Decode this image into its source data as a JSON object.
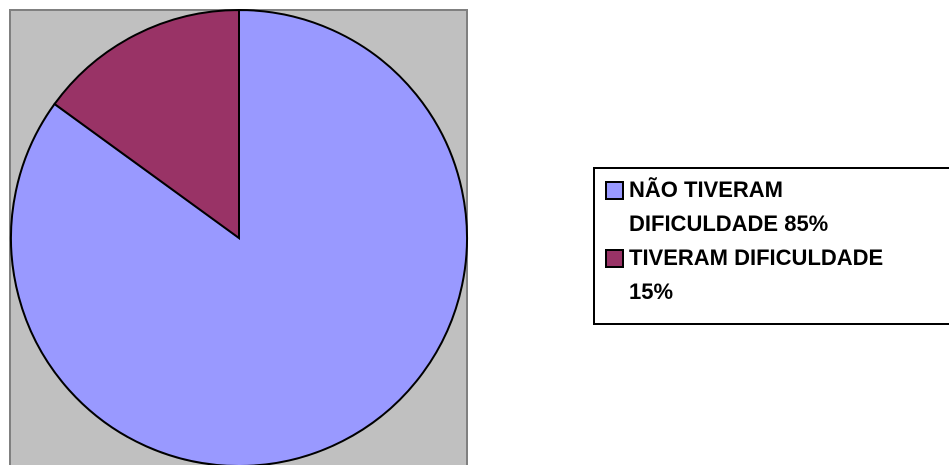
{
  "chart_data": {
    "type": "pie",
    "categories": [
      "NÃO TIVERAM DIFICULDADE 85%",
      "TIVERAM DIFICULDADE 15%"
    ],
    "values": [
      85,
      15
    ],
    "colors": [
      "#9999ff",
      "#993366"
    ],
    "legend": "right"
  }
}
